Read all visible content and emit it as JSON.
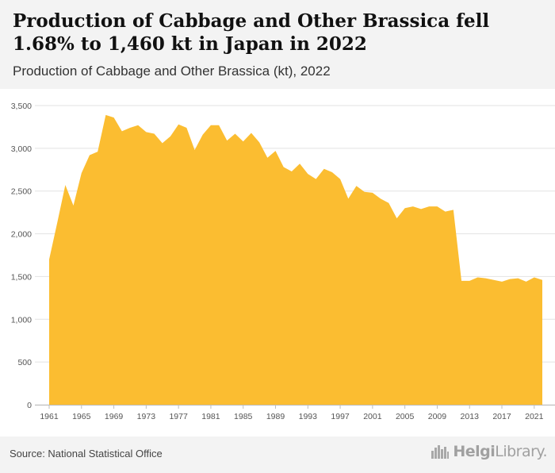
{
  "header": {
    "title": "Production of Cabbage and Other Brassica fell 1.68% to 1,460 kt in Japan in 2022",
    "subtitle": "Production of Cabbage and Other Brassica (kt), 2022"
  },
  "footer": {
    "source": "Source: National Statistical Office",
    "brand_prefix": "Helgi",
    "brand_suffix": "Library."
  },
  "colors": {
    "area_fill": "#fbbd31",
    "header_bg": "#f3f3f3",
    "grid": "#e2e2e2",
    "axis_text": "#555555"
  },
  "chart_data": {
    "type": "area",
    "title": "",
    "xlabel": "",
    "ylabel": "",
    "ylim": [
      0,
      3500
    ],
    "y_ticks": [
      0,
      500,
      1000,
      1500,
      2000,
      2500,
      3000,
      3500
    ],
    "y_tick_labels": [
      "0",
      "500",
      "1,000",
      "1,500",
      "2,000",
      "2,500",
      "3,000",
      "3,500"
    ],
    "x_ticks": [
      1961,
      1965,
      1969,
      1973,
      1977,
      1981,
      1985,
      1989,
      1993,
      1997,
      2001,
      2005,
      2009,
      2013,
      2017,
      2021
    ],
    "grid": true,
    "series": [
      {
        "x": [
          1961,
          1962,
          1963,
          1964,
          1965,
          1966,
          1967,
          1968,
          1969,
          1970,
          1971,
          1972,
          1973,
          1974,
          1975,
          1976,
          1977,
          1978,
          1979,
          1980,
          1981,
          1982,
          1983,
          1984,
          1985,
          1986,
          1987,
          1988,
          1989,
          1990,
          1991,
          1992,
          1993,
          1994,
          1995,
          1996,
          1997,
          1998,
          1999,
          2000,
          2001,
          2002,
          2003,
          2004,
          2005,
          2006,
          2007,
          2008,
          2009,
          2010,
          2011,
          2012,
          2013,
          2014,
          2015,
          2016,
          2017,
          2018,
          2019,
          2020,
          2021,
          2022
        ],
        "values": [
          1700,
          2130,
          2570,
          2330,
          2710,
          2920,
          2960,
          3390,
          3360,
          3200,
          3240,
          3270,
          3190,
          3170,
          3060,
          3140,
          3280,
          3240,
          2980,
          3160,
          3270,
          3270,
          3090,
          3170,
          3080,
          3180,
          3070,
          2890,
          2970,
          2780,
          2730,
          2820,
          2700,
          2640,
          2760,
          2720,
          2640,
          2410,
          2560,
          2490,
          2480,
          2410,
          2360,
          2180,
          2300,
          2320,
          2290,
          2320,
          2320,
          2260,
          2280,
          1450,
          1450,
          1490,
          1480,
          1460,
          1440,
          1470,
          1480,
          1440,
          1490,
          1460
        ]
      }
    ]
  }
}
